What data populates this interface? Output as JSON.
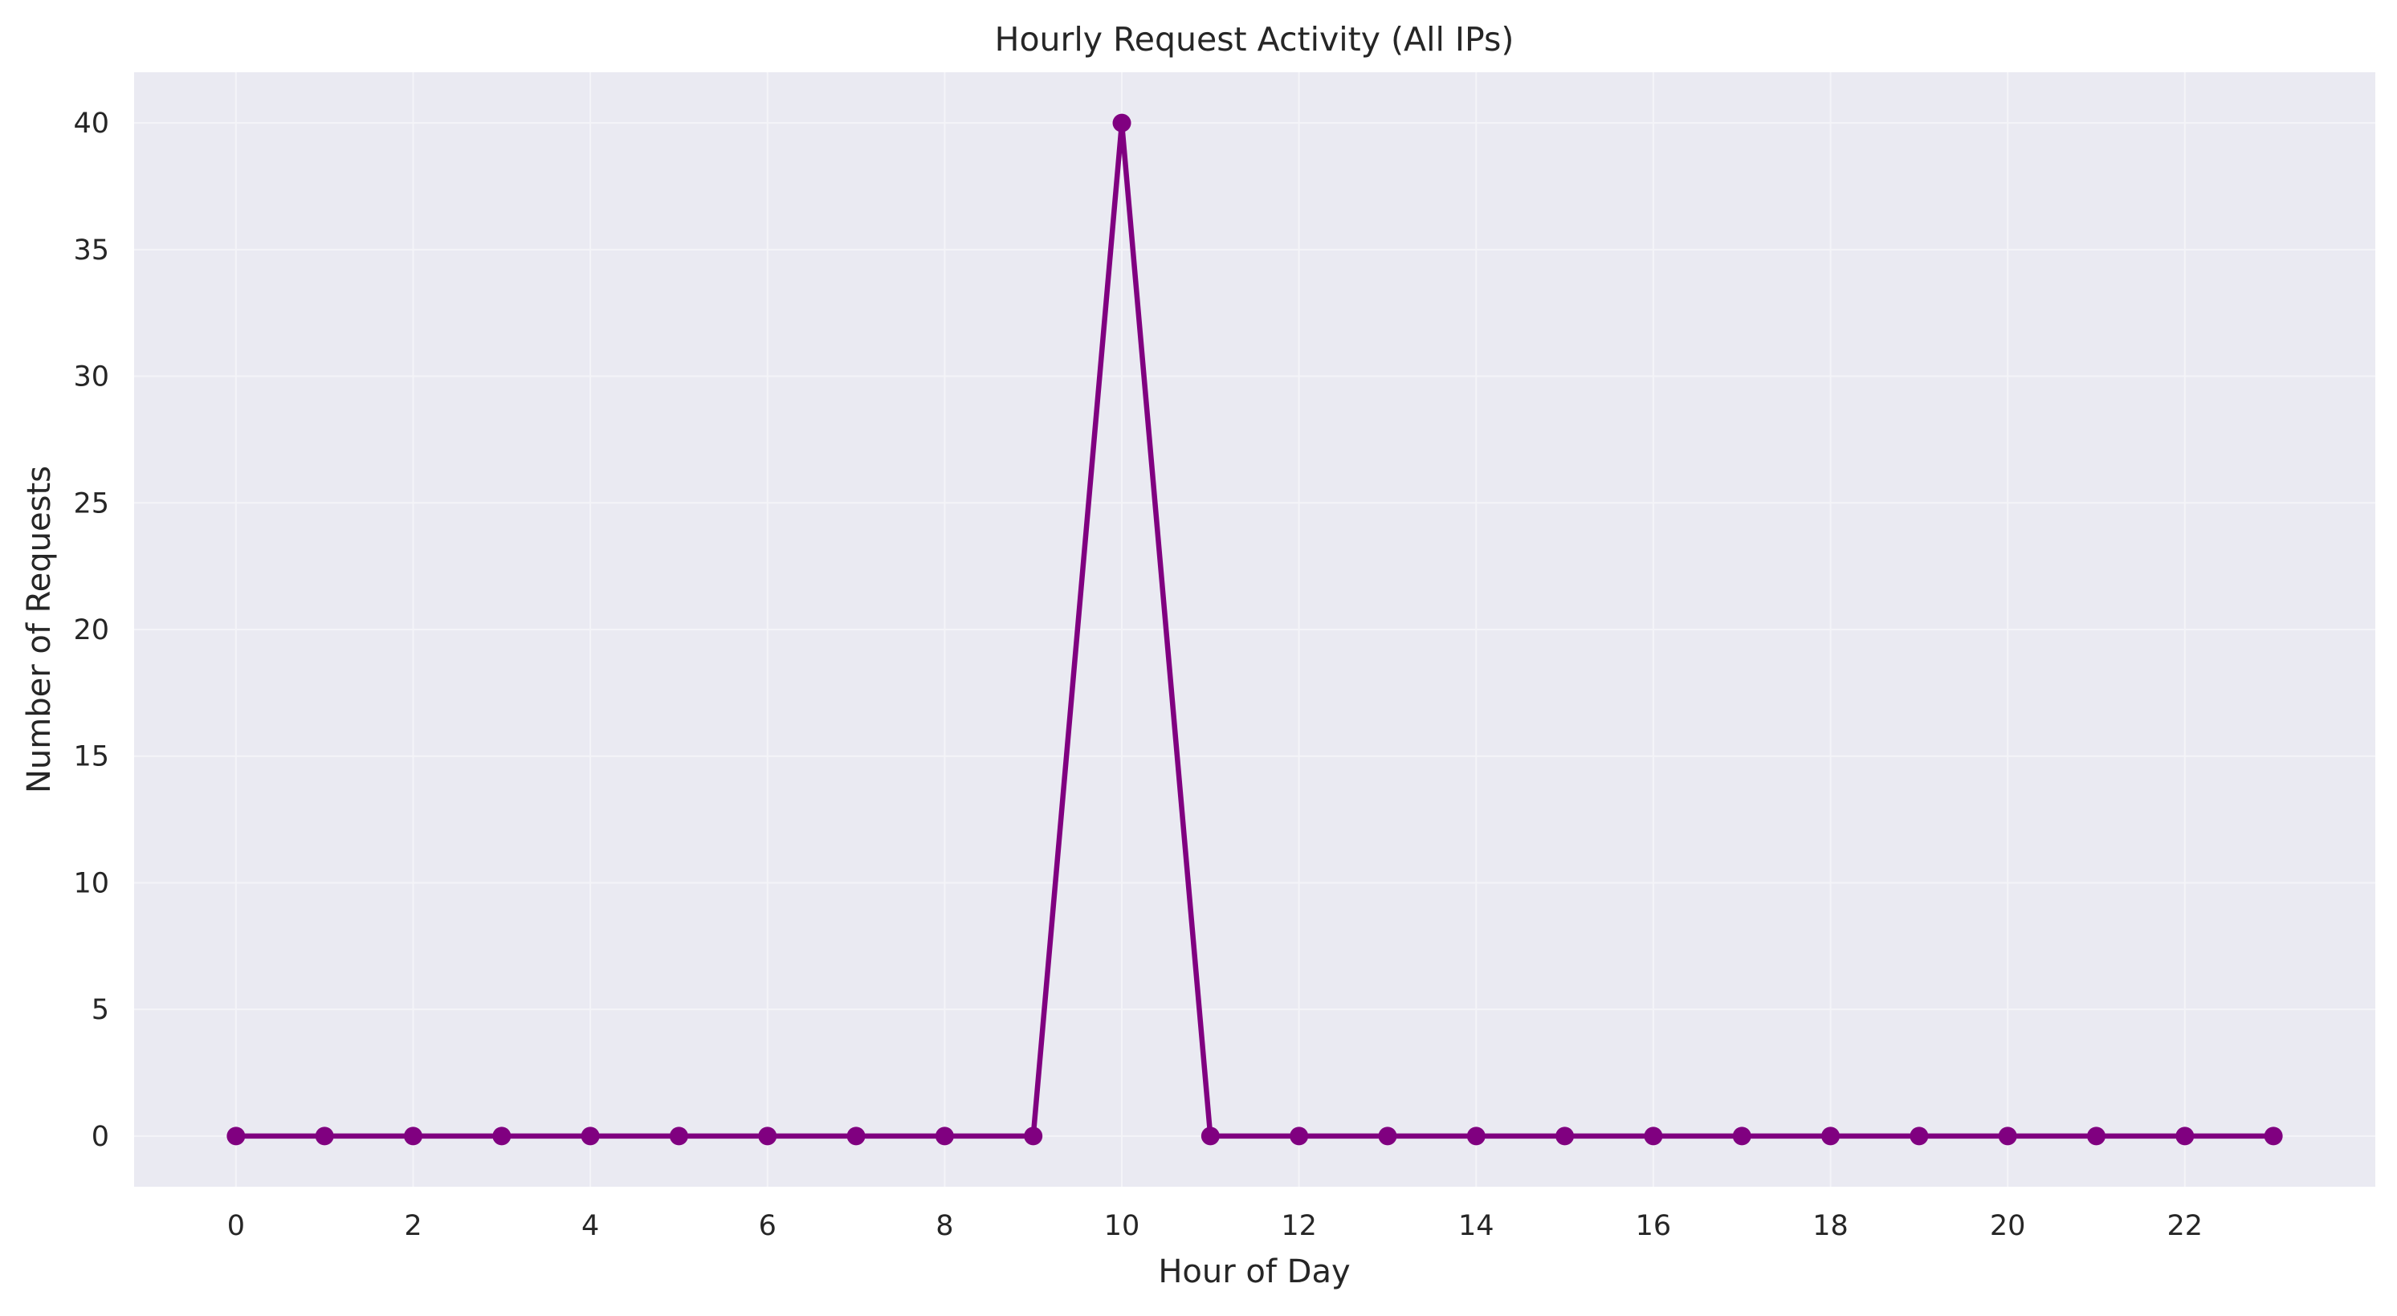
{
  "chart_data": {
    "type": "line",
    "title": "Hourly Request Activity (All IPs)",
    "xlabel": "Hour of Day",
    "ylabel": "Number of Requests",
    "x": [
      0,
      1,
      2,
      3,
      4,
      5,
      6,
      7,
      8,
      9,
      10,
      11,
      12,
      13,
      14,
      15,
      16,
      17,
      18,
      19,
      20,
      21,
      22,
      23
    ],
    "series": [
      {
        "values": [
          0,
          0,
          0,
          0,
          0,
          0,
          0,
          0,
          0,
          0,
          40,
          0,
          0,
          0,
          0,
          0,
          0,
          0,
          0,
          0,
          0,
          0,
          0,
          0
        ]
      }
    ],
    "xticks": [
      0,
      2,
      4,
      6,
      8,
      10,
      12,
      14,
      16,
      18,
      20,
      22
    ],
    "yticks": [
      0,
      5,
      10,
      15,
      20,
      25,
      30,
      35,
      40
    ],
    "xlim": [
      -1.15,
      24.15
    ],
    "ylim": [
      -2,
      42
    ],
    "grid": true,
    "colors": {
      "line": "#800080",
      "plot_background": "#eaeaf2",
      "grid": "#f4f4f8",
      "text": "#262626"
    }
  }
}
